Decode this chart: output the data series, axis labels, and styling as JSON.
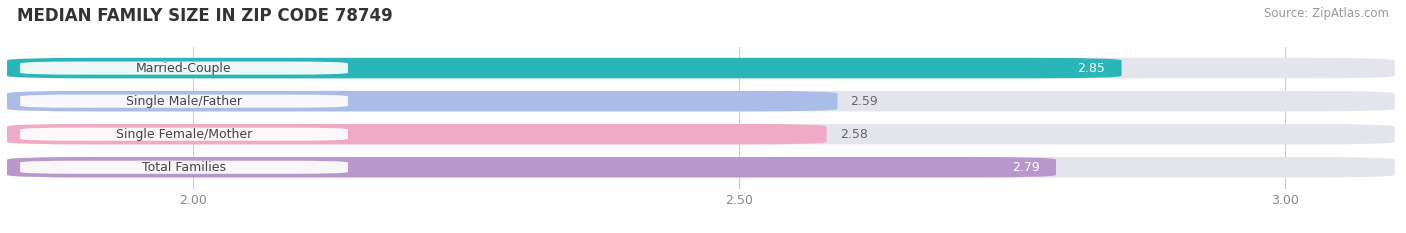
{
  "title": "MEDIAN FAMILY SIZE IN ZIP CODE 78749",
  "source": "Source: ZipAtlas.com",
  "categories": [
    "Married-Couple",
    "Single Male/Father",
    "Single Female/Mother",
    "Total Families"
  ],
  "values": [
    2.85,
    2.59,
    2.58,
    2.79
  ],
  "bar_colors": [
    "#2ab5b8",
    "#aabde8",
    "#f0aac5",
    "#b898cc"
  ],
  "value_inside": [
    true,
    false,
    false,
    true
  ],
  "value_colors_inside": [
    "#ffffff",
    "#666666",
    "#666666",
    "#ffffff"
  ],
  "xlim": [
    1.83,
    3.1
  ],
  "xticks": [
    2.0,
    2.5,
    3.0
  ],
  "xtick_labels": [
    "2.00",
    "2.50",
    "3.00"
  ],
  "bar_height": 0.62,
  "background_color": "#ffffff",
  "bar_bg_color": "#e4e4ec",
  "title_fontsize": 12,
  "source_fontsize": 8.5,
  "label_fontsize": 9,
  "value_fontsize": 9
}
